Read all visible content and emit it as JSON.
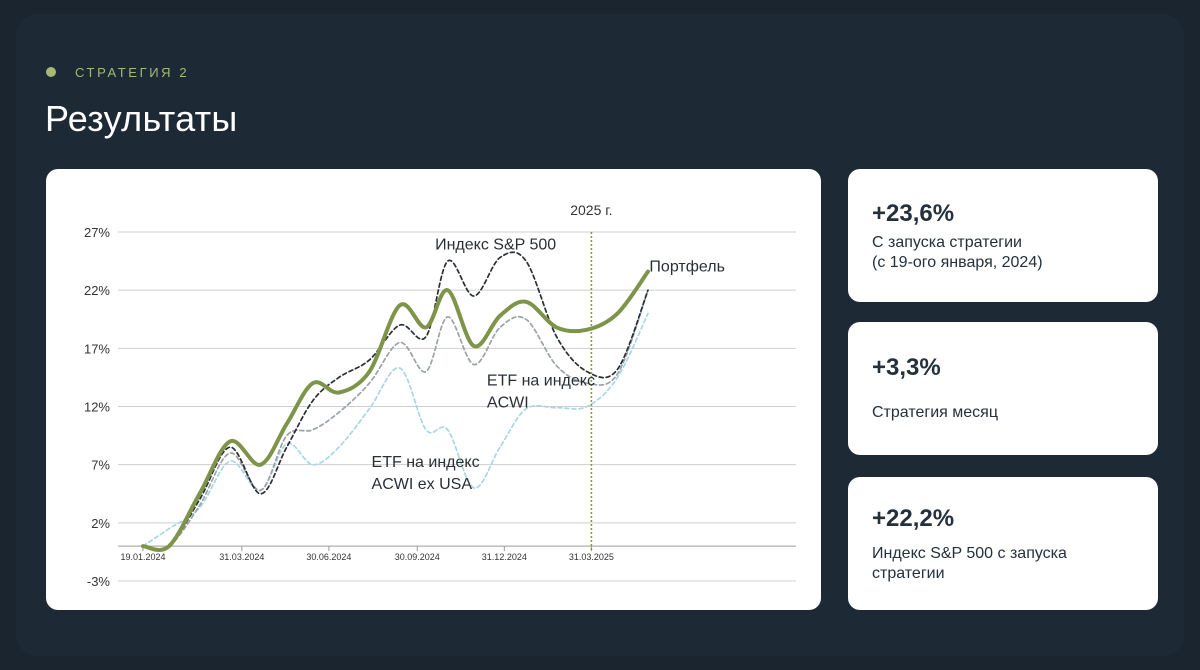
{
  "header": {
    "eyebrow": "СТРАТЕГИЯ 2",
    "title": "Результаты"
  },
  "stats": [
    {
      "value": "+23,6%",
      "label": "С запуска стратегии\n(с 19-ого января, 2024)"
    },
    {
      "value": "+3,3%",
      "label": "Стратегия месяц"
    },
    {
      "value": "+22,2%",
      "label": "Индекс S&P 500 с запуска\nстратегии"
    }
  ],
  "colors": {
    "background": "#1a2530",
    "accent": "#a7b974",
    "portfolio": "#7e9448",
    "sp500": "#2a2f36",
    "acwi": "#9ba2a8",
    "acwi_ex_usa": "#a9d6e3",
    "marker_2025": "#8c9a3c"
  },
  "chart_data": {
    "type": "line",
    "ylim": [
      -3,
      27
    ],
    "yticks": [
      -3,
      2,
      7,
      12,
      17,
      22,
      27
    ],
    "ytick_labels": [
      "-3%",
      "2%",
      "7%",
      "12%",
      "17%",
      "22%",
      "27%"
    ],
    "x_range": [
      0,
      15
    ],
    "xtick_positions": [
      0,
      2.27,
      4.27,
      6.3,
      8.3,
      10.3
    ],
    "xtick_labels": [
      "19.01.2024",
      "31.03.2024",
      "30.06.2024",
      "30.09.2024",
      "31.12.2024",
      "31.03.2025"
    ],
    "vline": {
      "x": 10.3,
      "label": "2025 г."
    },
    "annotations": [
      {
        "text": "Индекс S&P 500",
        "x": 8.1,
        "y": 25.5,
        "anchor": "middle"
      },
      {
        "text": "Портфель",
        "x": 12.5,
        "y": 23.6,
        "anchor": "middle"
      },
      {
        "text": "ETF на индекс",
        "x": 7.9,
        "y": 13.8,
        "anchor": "start"
      },
      {
        "text": "ACWI",
        "x": 7.9,
        "y": 11.9,
        "anchor": "start"
      },
      {
        "text": "ETF на индекс",
        "x": 5.25,
        "y": 6.8,
        "anchor": "start"
      },
      {
        "text": "ACWI ex USA",
        "x": 5.25,
        "y": 4.9,
        "anchor": "start"
      }
    ],
    "series": [
      {
        "name": "Портфель",
        "style": "solid",
        "x": [
          0,
          0.6,
          1.3,
          2.0,
          2.7,
          3.3,
          3.9,
          4.5,
          5.2,
          5.9,
          6.5,
          7.0,
          7.6,
          8.2,
          8.8,
          9.5,
          10.2,
          10.9,
          11.6
        ],
        "y": [
          0,
          0,
          4.5,
          9,
          7,
          10.5,
          14,
          13.2,
          15,
          20.7,
          18.8,
          22,
          17.2,
          19.8,
          21,
          18.8,
          18.6,
          20,
          23.6
        ]
      },
      {
        "name": "Индекс S&P 500",
        "style": "dashed",
        "x": [
          0,
          0.6,
          1.3,
          2.0,
          2.7,
          3.3,
          3.9,
          4.5,
          5.2,
          5.9,
          6.5,
          7.0,
          7.6,
          8.2,
          8.8,
          9.5,
          10.2,
          10.9,
          11.6
        ],
        "y": [
          0,
          0,
          4,
          8.5,
          4.5,
          8.5,
          12.5,
          14.5,
          16,
          19,
          18,
          24.5,
          21.5,
          24.8,
          24.5,
          18,
          15,
          15.2,
          22
        ]
      },
      {
        "name": "ETF на индекс ACWI",
        "style": "dashed",
        "x": [
          0,
          0.6,
          1.3,
          2.0,
          2.7,
          3.3,
          3.9,
          4.5,
          5.2,
          5.9,
          6.5,
          7.0,
          7.6,
          8.2,
          8.8,
          9.5,
          10.2,
          10.9,
          11.6
        ],
        "y": [
          0,
          0,
          3.5,
          8,
          4.8,
          9.5,
          10,
          11.5,
          14,
          17.5,
          15,
          19.7,
          15.6,
          18.8,
          19.5,
          15.5,
          14,
          14.8,
          22
        ]
      },
      {
        "name": "ETF на индекс ACWI ex USA",
        "style": "dashed",
        "x": [
          0,
          0.6,
          1.3,
          2.0,
          2.7,
          3.3,
          3.9,
          4.5,
          5.2,
          5.9,
          6.5,
          7.0,
          7.6,
          8.2,
          8.8,
          9.5,
          10.2,
          10.9,
          11.6
        ],
        "y": [
          0,
          1.5,
          3.3,
          7.3,
          4.8,
          8.8,
          7,
          8.5,
          11.8,
          15.3,
          10,
          10,
          5,
          8.5,
          11.8,
          11.9,
          12,
          14.5,
          20
        ]
      }
    ]
  }
}
